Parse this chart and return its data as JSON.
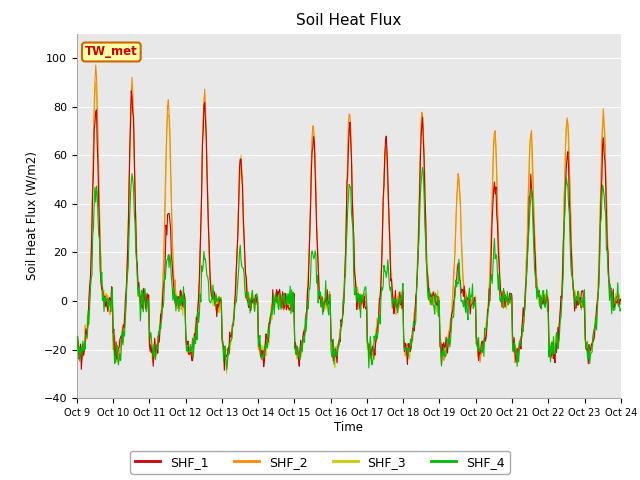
{
  "title": "Soil Heat Flux",
  "ylabel": "Soil Heat Flux (W/m2)",
  "xlabel": "Time",
  "ylim": [
    -40,
    110
  ],
  "yticks": [
    -40,
    -20,
    0,
    20,
    40,
    60,
    80,
    100
  ],
  "series_colors": [
    "#cc0000",
    "#ff8800",
    "#cccc00",
    "#00bb00"
  ],
  "series_names": [
    "SHF_1",
    "SHF_2",
    "SHF_3",
    "SHF_4"
  ],
  "annotation_text": "TW_met",
  "annotation_box_color": "#ffffaa",
  "annotation_text_color": "#cc0000",
  "annotation_border_color": "#cc6600",
  "fig_bg_color": "#ffffff",
  "plot_bg_color": "#e8e8e8",
  "x_tick_labels": [
    "Oct 9",
    "Oct 10",
    "Oct 11",
    "Oct 12",
    "Oct 13",
    "Oct 14",
    "Oct 15",
    "Oct 16",
    "Oct 17",
    "Oct 18",
    "Oct 19",
    "Oct 20",
    "Oct 21",
    "Oct 22",
    "Oct 23",
    "Oct 24"
  ],
  "legend_colors": [
    "#cc0000",
    "#ff8800",
    "#cccc00",
    "#00bb00"
  ],
  "line_width": 0.8,
  "grid_color": "#ffffff",
  "n_days": 15,
  "pts_per_day": 48
}
